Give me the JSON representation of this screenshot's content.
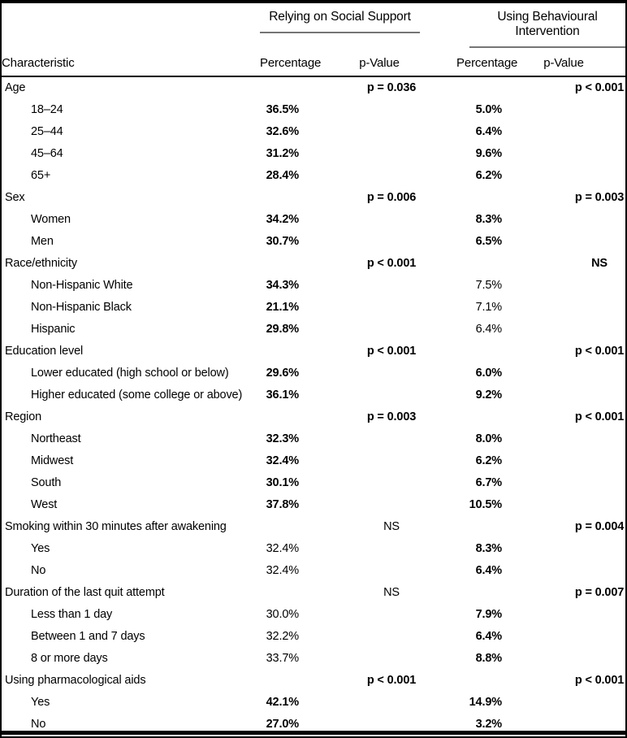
{
  "table": {
    "col_groups": [
      {
        "label": "Relying on Social Support"
      },
      {
        "label": "Using Behavioural Intervention"
      }
    ],
    "columns": [
      "Characteristic",
      "Percentage",
      "p-Value",
      "Percentage",
      "p-Value"
    ],
    "rows": [
      {
        "label": "Age",
        "indent": false,
        "pval1": "p = 0.036",
        "pval1_bold": true,
        "pval2": "p < 0.001",
        "pval2_bold": true
      },
      {
        "label": "18–24",
        "indent": true,
        "pct1": "36.5%",
        "pct1_bold": true,
        "pct2": "5.0%",
        "pct2_bold": true
      },
      {
        "label": "25–44",
        "indent": true,
        "pct1": "32.6%",
        "pct1_bold": true,
        "pct2": "6.4%",
        "pct2_bold": true
      },
      {
        "label": "45–64",
        "indent": true,
        "pct1": "31.2%",
        "pct1_bold": true,
        "pct2": "9.6%",
        "pct2_bold": true
      },
      {
        "label": "65+",
        "indent": true,
        "pct1": "28.4%",
        "pct1_bold": true,
        "pct2": "6.2%",
        "pct2_bold": true
      },
      {
        "label": "Sex",
        "indent": false,
        "pval1": "p = 0.006",
        "pval1_bold": true,
        "pval2": "p = 0.003",
        "pval2_bold": true
      },
      {
        "label": "Women",
        "indent": true,
        "pct1": "34.2%",
        "pct1_bold": true,
        "pct2": "8.3%",
        "pct2_bold": true
      },
      {
        "label": "Men",
        "indent": true,
        "pct1": "30.7%",
        "pct1_bold": true,
        "pct2": "6.5%",
        "pct2_bold": true
      },
      {
        "label": "Race/ethnicity",
        "indent": false,
        "pval1": "p < 0.001",
        "pval1_bold": true,
        "pval2": "NS",
        "pval2_bold": true
      },
      {
        "label": "Non-Hispanic White",
        "indent": true,
        "pct1": "34.3%",
        "pct1_bold": true,
        "pct2": "7.5%",
        "pct2_bold": false
      },
      {
        "label": "Non-Hispanic Black",
        "indent": true,
        "pct1": "21.1%",
        "pct1_bold": true,
        "pct2": "7.1%",
        "pct2_bold": false
      },
      {
        "label": "Hispanic",
        "indent": true,
        "pct1": "29.8%",
        "pct1_bold": true,
        "pct2": "6.4%",
        "pct2_bold": false
      },
      {
        "label": "Education level",
        "indent": false,
        "pval1": "p < 0.001",
        "pval1_bold": true,
        "pval2": "p < 0.001",
        "pval2_bold": true
      },
      {
        "label": "Lower educated (high school or below)",
        "indent": true,
        "pct1": "29.6%",
        "pct1_bold": true,
        "pct2": "6.0%",
        "pct2_bold": true
      },
      {
        "label": "Higher educated (some college or above)",
        "indent": true,
        "pct1": "36.1%",
        "pct1_bold": true,
        "pct2": "9.2%",
        "pct2_bold": true
      },
      {
        "label": "Region",
        "indent": false,
        "pval1": "p = 0.003",
        "pval1_bold": true,
        "pval2": "p < 0.001",
        "pval2_bold": true
      },
      {
        "label": "Northeast",
        "indent": true,
        "pct1": "32.3%",
        "pct1_bold": true,
        "pct2": "8.0%",
        "pct2_bold": true
      },
      {
        "label": "Midwest",
        "indent": true,
        "pct1": "32.4%",
        "pct1_bold": true,
        "pct2": "6.2%",
        "pct2_bold": true
      },
      {
        "label": "South",
        "indent": true,
        "pct1": "30.1%",
        "pct1_bold": true,
        "pct2": "6.7%",
        "pct2_bold": true
      },
      {
        "label": "West",
        "indent": true,
        "pct1": "37.8%",
        "pct1_bold": true,
        "pct2": "10.5%",
        "pct2_bold": true
      },
      {
        "label": "Smoking within 30 minutes after awakening",
        "indent": false,
        "pval1": "NS",
        "pval1_bold": false,
        "pval2": "p = 0.004",
        "pval2_bold": true
      },
      {
        "label": "Yes",
        "indent": true,
        "pct1": "32.4%",
        "pct1_bold": false,
        "pct2": "8.3%",
        "pct2_bold": true
      },
      {
        "label": "No",
        "indent": true,
        "pct1": "32.4%",
        "pct1_bold": false,
        "pct2": "6.4%",
        "pct2_bold": true
      },
      {
        "label": "Duration of the last quit attempt",
        "indent": false,
        "pval1": "NS",
        "pval1_bold": false,
        "pval2": "p = 0.007",
        "pval2_bold": true
      },
      {
        "label": "Less than 1 day",
        "indent": true,
        "pct1": "30.0%",
        "pct1_bold": false,
        "pct2": "7.9%",
        "pct2_bold": true
      },
      {
        "label": "Between 1 and 7 days",
        "indent": true,
        "pct1": "32.2%",
        "pct1_bold": false,
        "pct2": "6.4%",
        "pct2_bold": true
      },
      {
        "label": "8 or more days",
        "indent": true,
        "pct1": "33.7%",
        "pct1_bold": false,
        "pct2": "8.8%",
        "pct2_bold": true
      },
      {
        "label": "Using pharmacological aids",
        "indent": false,
        "pval1": "p < 0.001",
        "pval1_bold": true,
        "pval2": "p < 0.001",
        "pval2_bold": true
      },
      {
        "label": "Yes",
        "indent": true,
        "pct1": "42.1%",
        "pct1_bold": true,
        "pct2": "14.9%",
        "pct2_bold": true
      },
      {
        "label": "No",
        "indent": true,
        "pct1": "27.0%",
        "pct1_bold": true,
        "pct2": "3.2%",
        "pct2_bold": true
      }
    ],
    "colors": {
      "text": "#000000",
      "border": "#000000",
      "group_rule": "#757575"
    }
  }
}
